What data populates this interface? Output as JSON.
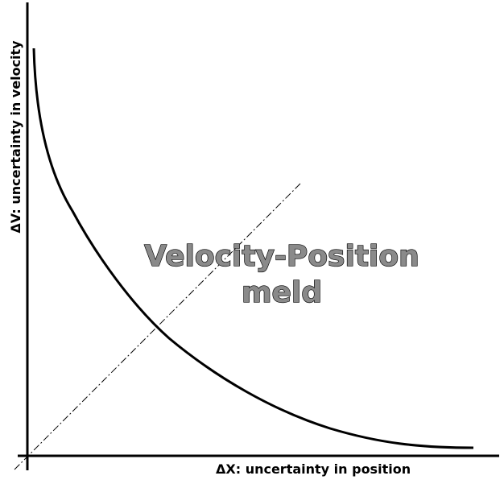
{
  "diagram": {
    "x_axis_label": "ΔX: uncertainty in position",
    "y_axis_label": "ΔV: uncertainty in velocity",
    "center_label_line1": "Velocity-Position",
    "center_label_line2": "meld",
    "colors": {
      "lines": "#000000",
      "center_label_fill": "#8a8a8a",
      "background": "#ffffff"
    }
  }
}
